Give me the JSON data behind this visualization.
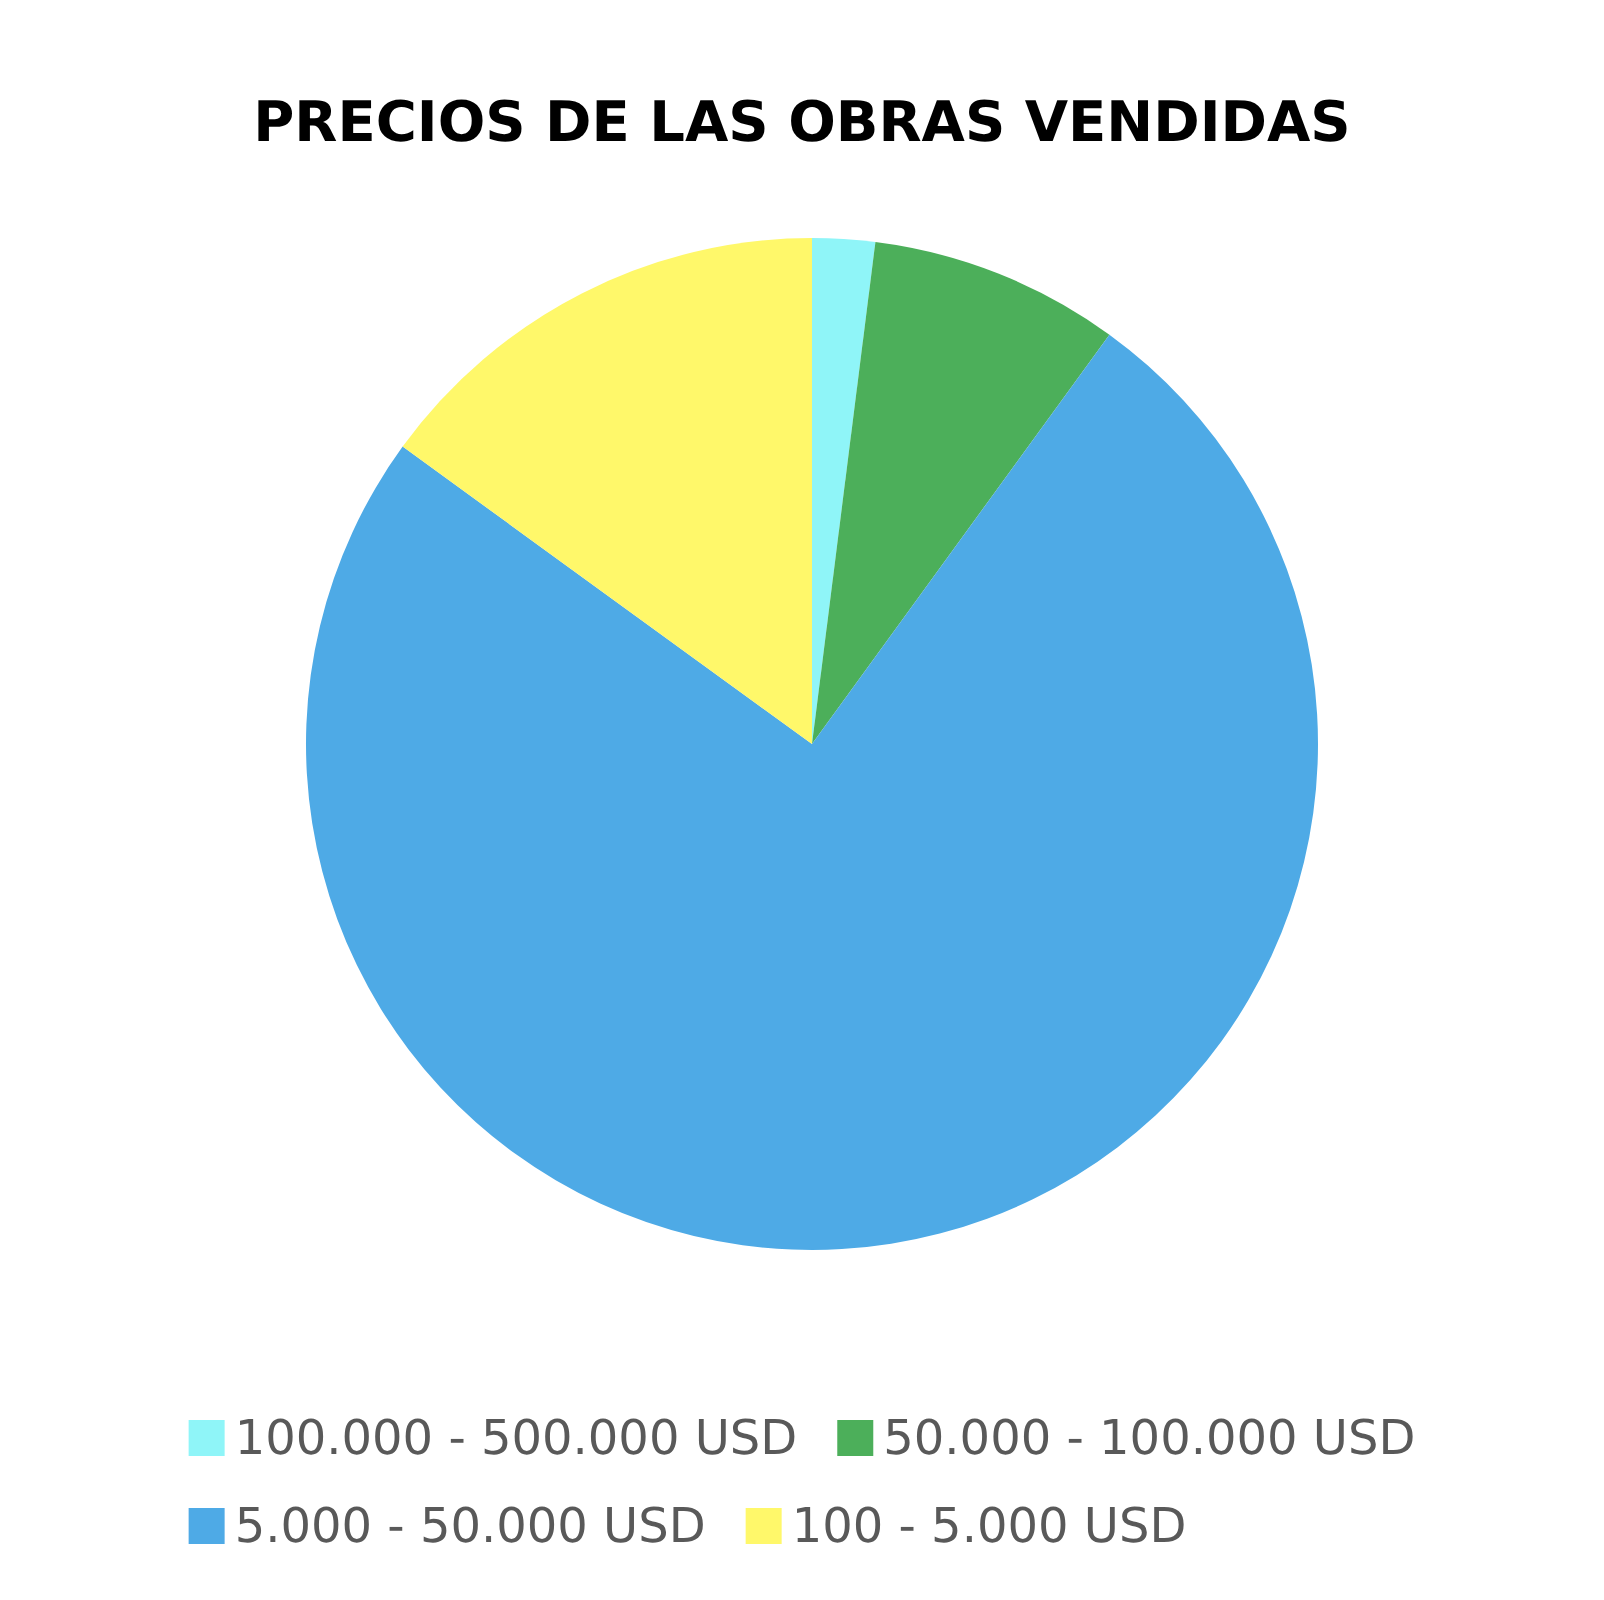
{
  "chart_data": {
    "type": "pie",
    "title": "PRECIOS DE LAS OBRAS VENDIDAS",
    "categories": [
      "100.000 - 500.000 USD",
      "50.000 - 100.000 USD",
      "5.000 - 50.000 USD",
      "100 - 5.000 USD"
    ],
    "values": [
      2,
      8,
      75,
      15
    ],
    "colors": [
      "#8ff5f8",
      "#4caf5a",
      "#4eaae6",
      "#fff86a"
    ],
    "legend": "bottom"
  }
}
